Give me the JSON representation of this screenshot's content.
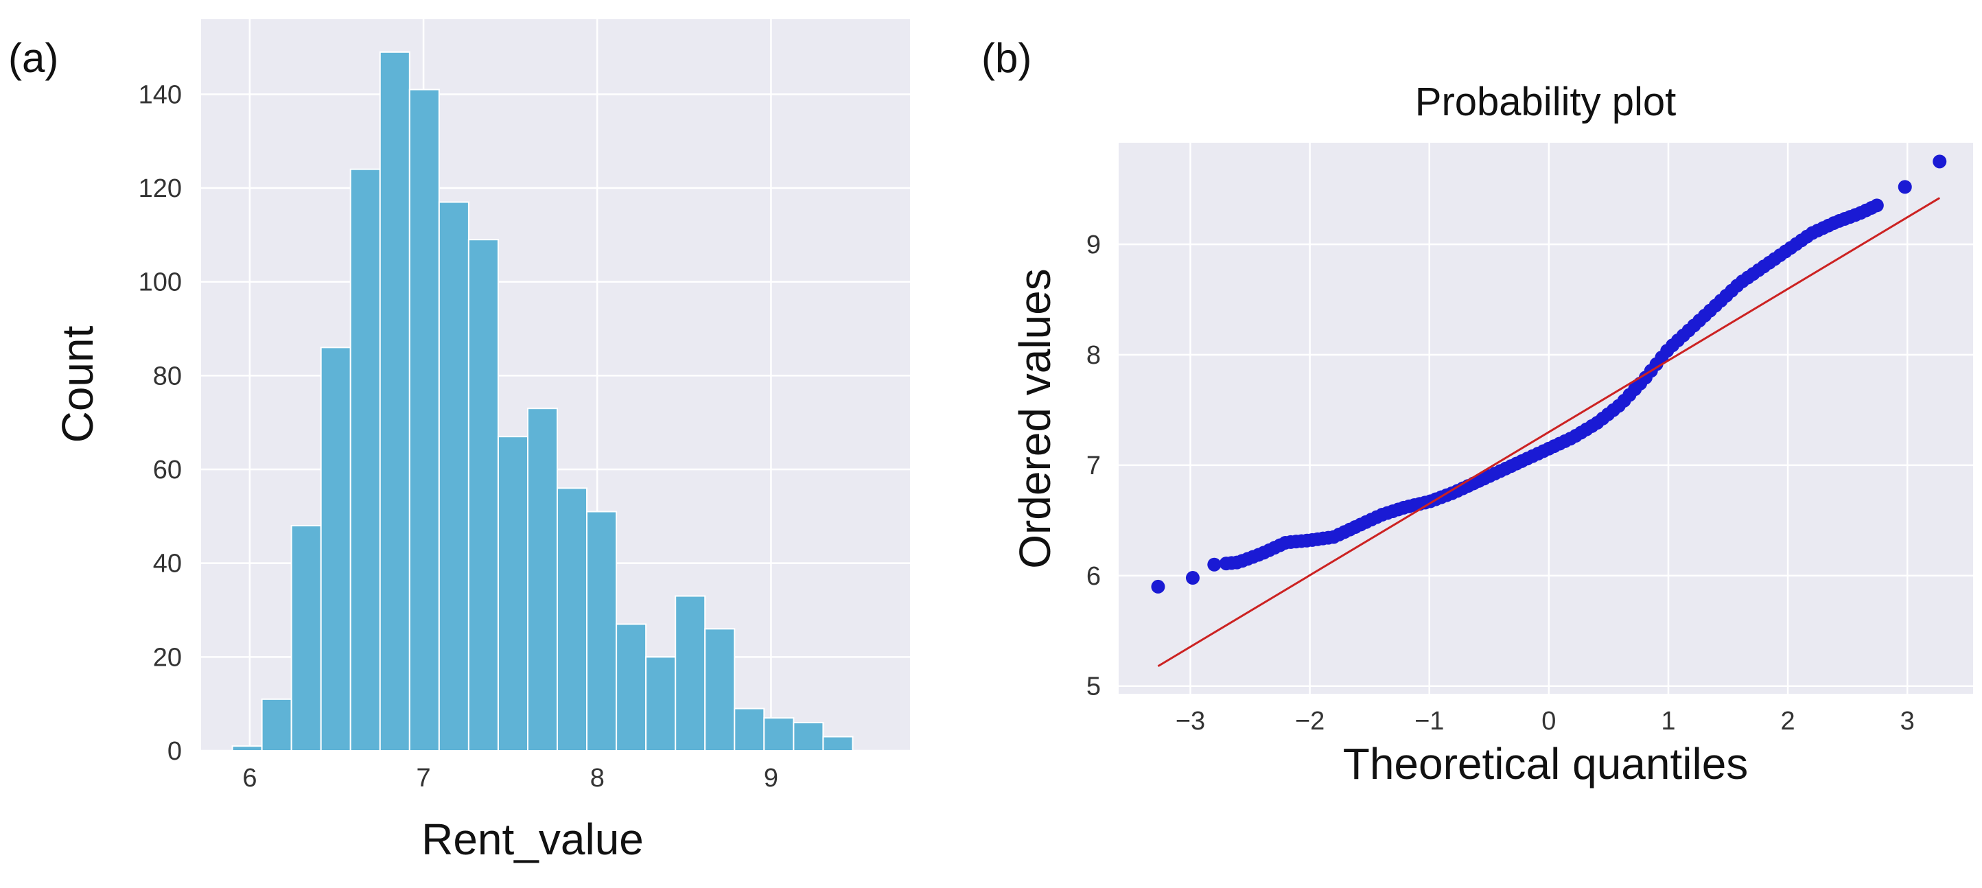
{
  "chart_data": [
    {
      "type": "bar",
      "panel_label": "(a)",
      "title": "",
      "xlabel": "Rent_value",
      "ylabel": "Count",
      "xlim": [
        5.72,
        9.8
      ],
      "ylim": [
        0,
        156
      ],
      "xticks": [
        6,
        7,
        8,
        9
      ],
      "yticks": [
        0,
        20,
        40,
        60,
        80,
        100,
        120,
        140
      ],
      "bin_width": 0.17,
      "bin_starts": [
        5.9,
        6.07,
        6.24,
        6.41,
        6.58,
        6.75,
        6.92,
        7.09,
        7.26,
        7.43,
        7.6,
        7.77,
        7.94,
        8.11,
        8.28,
        8.45,
        8.62,
        8.79,
        8.96,
        9.13,
        9.3,
        9.47
      ],
      "values": [
        1,
        11,
        48,
        86,
        124,
        149,
        141,
        117,
        109,
        67,
        73,
        56,
        51,
        27,
        20,
        33,
        26,
        9,
        7,
        6,
        3,
        0
      ],
      "color": "#5fb3d6",
      "grid": true
    },
    {
      "type": "scatter",
      "panel_label": "(b)",
      "title": "Probability plot",
      "xlabel": "Theoretical quantiles",
      "ylabel": "Ordered values",
      "xlim": [
        -3.6,
        3.55
      ],
      "ylim": [
        4.93,
        9.92
      ],
      "xticks": [
        -3,
        -2,
        -1,
        0,
        1,
        2,
        3
      ],
      "xtick_labels": [
        "−3",
        "−2",
        "−1",
        "0",
        "1",
        "2",
        "3"
      ],
      "yticks": [
        5,
        6,
        7,
        8,
        9
      ],
      "fit_line": {
        "x": [
          -3.27,
          3.27
        ],
        "y": [
          5.18,
          9.42
        ],
        "color": "#cc2222"
      },
      "point_color": "#1a1ad4",
      "quantile_points": [
        [
          -3.27,
          5.9
        ],
        [
          -2.98,
          5.98
        ],
        [
          -2.8,
          6.1
        ],
        [
          -2.6,
          6.12
        ],
        [
          -2.4,
          6.2
        ],
        [
          -2.2,
          6.3
        ],
        [
          -2.0,
          6.32
        ],
        [
          -1.8,
          6.35
        ],
        [
          -1.6,
          6.45
        ],
        [
          -1.4,
          6.55
        ],
        [
          -1.2,
          6.62
        ],
        [
          -1.0,
          6.67
        ],
        [
          -0.8,
          6.75
        ],
        [
          -0.6,
          6.85
        ],
        [
          -0.4,
          6.95
        ],
        [
          -0.2,
          7.05
        ],
        [
          0.0,
          7.15
        ],
        [
          0.2,
          7.25
        ],
        [
          0.4,
          7.38
        ],
        [
          0.6,
          7.55
        ],
        [
          0.8,
          7.78
        ],
        [
          1.0,
          8.05
        ],
        [
          1.2,
          8.25
        ],
        [
          1.4,
          8.45
        ],
        [
          1.6,
          8.65
        ],
        [
          1.8,
          8.8
        ],
        [
          2.0,
          8.95
        ],
        [
          2.2,
          9.1
        ],
        [
          2.4,
          9.2
        ],
        [
          2.6,
          9.28
        ],
        [
          2.8,
          9.38
        ],
        [
          2.98,
          9.52
        ],
        [
          3.27,
          9.75
        ]
      ],
      "grid": true
    }
  ]
}
